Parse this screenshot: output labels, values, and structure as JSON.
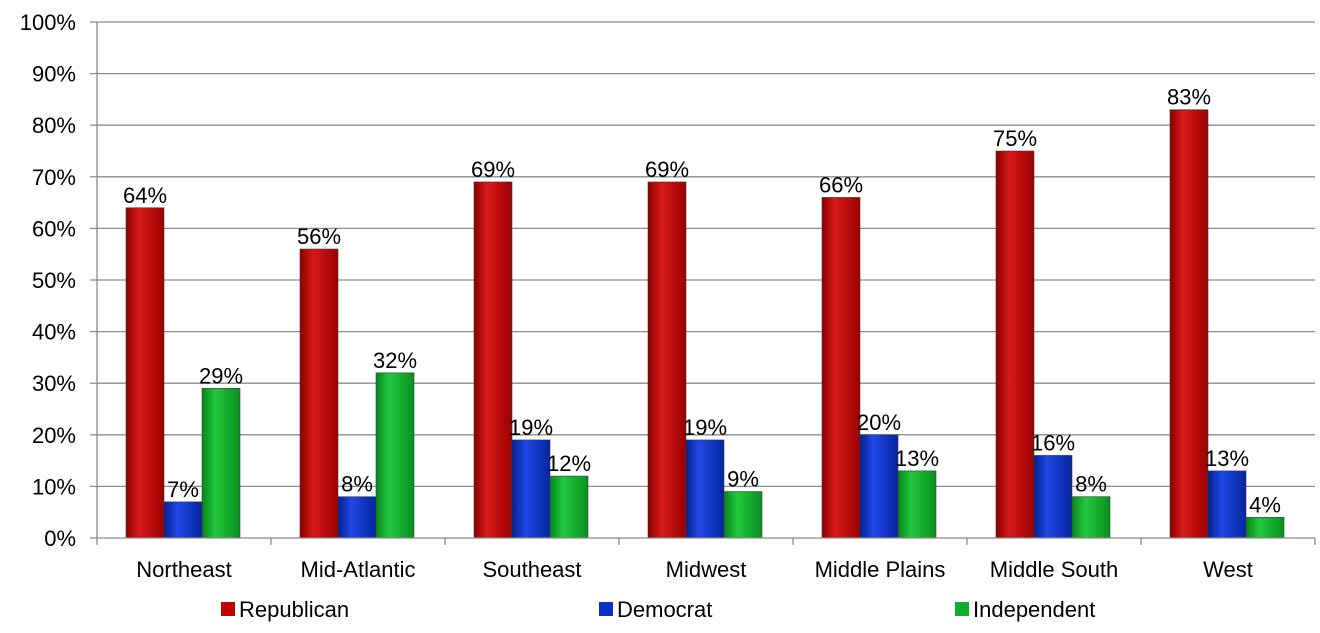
{
  "chart_data": {
    "type": "bar",
    "categories": [
      "Northeast",
      "Mid-Atlantic",
      "Southeast",
      "Midwest",
      "Middle Plains",
      "Middle South",
      "West"
    ],
    "series": [
      {
        "name": "Republican",
        "values": [
          64,
          56,
          69,
          69,
          66,
          75,
          83
        ],
        "color": "#C00000",
        "labels": [
          "64%",
          "56%",
          "69%",
          "69%",
          "66%",
          "75%",
          "83%"
        ]
      },
      {
        "name": "Democrat",
        "values": [
          7,
          8,
          19,
          19,
          20,
          16,
          13
        ],
        "color": "#0A2FC8",
        "labels": [
          "7%",
          "8%",
          "19%",
          "19%",
          "20%",
          "16%",
          "13%"
        ]
      },
      {
        "name": "Independent",
        "values": [
          29,
          32,
          12,
          9,
          13,
          8,
          4
        ],
        "color": "#0DB02B",
        "labels": [
          "29%",
          "32%",
          "12%",
          "9%",
          "13%",
          "8%",
          "4%"
        ]
      }
    ],
    "ylim": [
      0,
      100
    ],
    "yticks": [
      0,
      10,
      20,
      30,
      40,
      50,
      60,
      70,
      80,
      90,
      100
    ],
    "ytick_labels": [
      "0%",
      "10%",
      "20%",
      "30%",
      "40%",
      "50%",
      "60%",
      "70%",
      "80%",
      "90%",
      "100%"
    ],
    "title": "",
    "xlabel": "",
    "ylabel": "",
    "grid": true,
    "legend_position": "bottom"
  }
}
